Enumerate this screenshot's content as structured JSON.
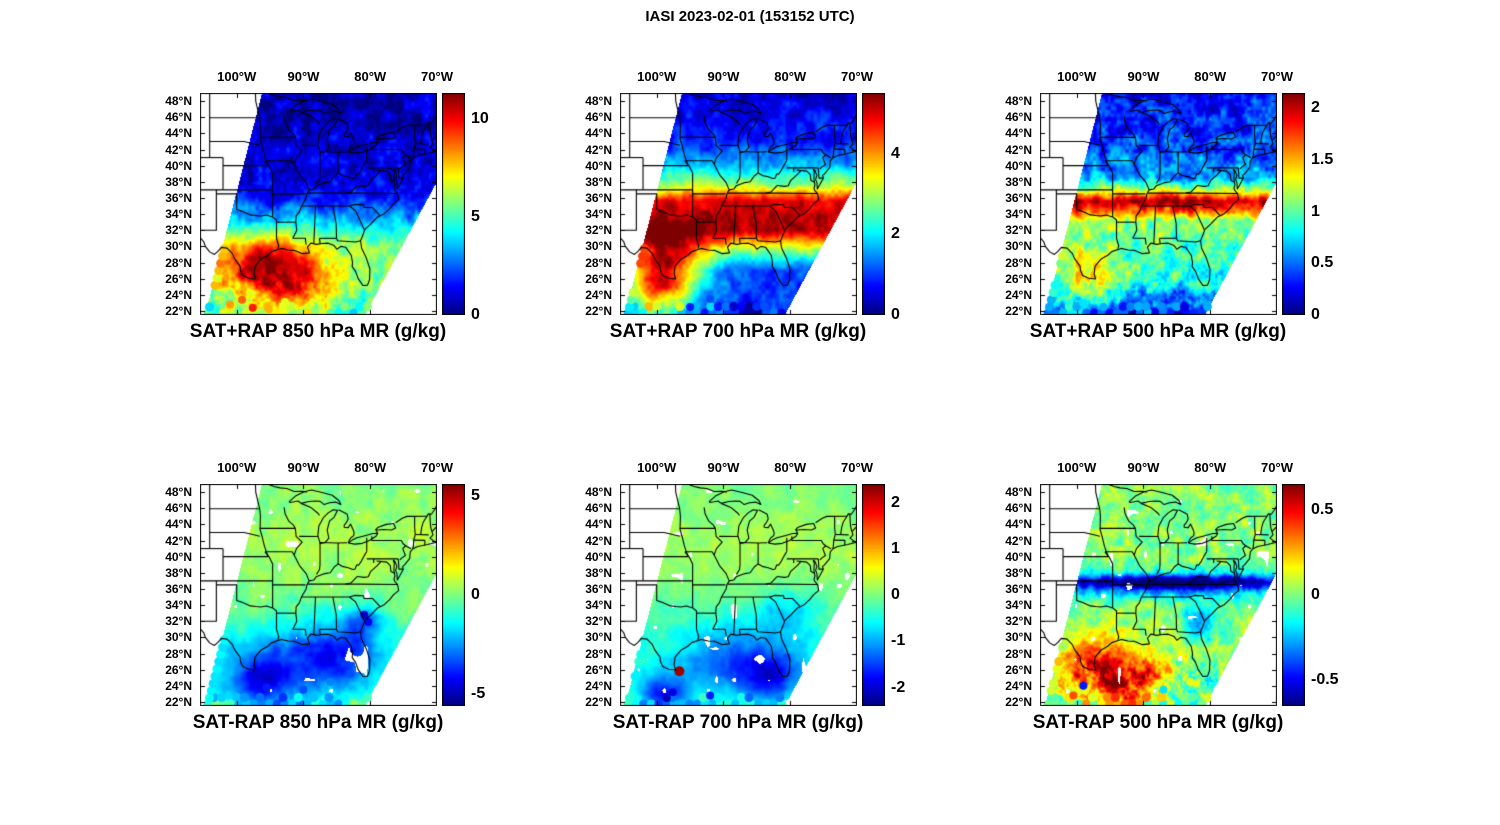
{
  "figure_title": "IASI 2023-02-01 (153152 UTC)",
  "colormap": "jet",
  "axes": {
    "lon_range": [
      -105.5,
      -70
    ],
    "lat_range": [
      21.5,
      49
    ],
    "grid": false,
    "lon_ticks": [
      {
        "label": "100°W",
        "lon": -100
      },
      {
        "label": "90°W",
        "lon": -90
      },
      {
        "label": "80°W",
        "lon": -80
      },
      {
        "label": "70°W",
        "lon": -70
      }
    ],
    "lat_ticks": [
      {
        "label": "48°N",
        "lat": 48
      },
      {
        "label": "46°N",
        "lat": 46
      },
      {
        "label": "44°N",
        "lat": 44
      },
      {
        "label": "42°N",
        "lat": 42
      },
      {
        "label": "40°N",
        "lat": 40
      },
      {
        "label": "38°N",
        "lat": 38
      },
      {
        "label": "36°N",
        "lat": 36
      },
      {
        "label": "34°N",
        "lat": 34
      },
      {
        "label": "32°N",
        "lat": 32
      },
      {
        "label": "30°N",
        "lat": 30
      },
      {
        "label": "28°N",
        "lat": 28
      },
      {
        "label": "26°N",
        "lat": 26
      },
      {
        "label": "24°N",
        "lat": 24
      },
      {
        "label": "22°N",
        "lat": 22
      }
    ]
  },
  "chart_data": [
    {
      "type": "heatmap",
      "title": "SAT+RAP 850 hPa MR (g/kg)",
      "units": "g/kg",
      "clim": [
        0,
        11.3
      ],
      "colorbar_ticks": [
        {
          "label": "10",
          "value": 10
        },
        {
          "label": "5",
          "value": 5
        },
        {
          "label": "0",
          "value": 0
        }
      ],
      "description": "IASI satellite swath of 850 hPa mixing ratio: 0-2 g/kg north of ~36N, 8-11 g/kg moist plume over Texas/Louisiana Gulf coast 24-31N, 4-7 g/kg over the Gulf of Mexico",
      "approx_field": {
        "lat_profile": [
          [
            49,
            0.06
          ],
          [
            40,
            0.08
          ],
          [
            36,
            0.14
          ],
          [
            33,
            0.3
          ],
          [
            30,
            0.5
          ],
          [
            27,
            0.5
          ],
          [
            21.5,
            0.42
          ]
        ],
        "blobs": [
          {
            "lon": -95.5,
            "slon": 5.5,
            "lat": 27.5,
            "slat": 2.8,
            "amp": 0.45
          },
          {
            "lon": -91,
            "slon": 4,
            "lat": 24.5,
            "slat": 2,
            "amp": 0.22
          }
        ],
        "noise_amp": 0.12,
        "noise_scale": 1.4,
        "south_noise_amp": 0.1,
        "seed": 11,
        "holes": false,
        "dots": [
          {
            "lon": -99.2,
            "lat": 23.4,
            "t": 0.78
          },
          {
            "lon": -97.6,
            "lat": 22.4,
            "t": 0.85
          },
          {
            "lon": -95.2,
            "lat": 22.2,
            "t": 0.7
          },
          {
            "lon": -92.8,
            "lat": 23.1,
            "t": 0.6
          },
          {
            "lon": -101,
            "lat": 22.8,
            "t": 0.72
          }
        ]
      }
    },
    {
      "type": "heatmap",
      "title": "SAT+RAP 700 hPa MR (g/kg)",
      "units": "g/kg",
      "clim": [
        0,
        5.5
      ],
      "colorbar_ticks": [
        {
          "label": "4",
          "value": 4
        },
        {
          "label": "2",
          "value": 2
        },
        {
          "label": "0",
          "value": 0
        }
      ],
      "description": "700 hPa mixing ratio: dry blue air north of ~42N, green 2-3 g/kg midlatitudes, deep red 5+ g/kg band across 31-36N extending to the lower-left, dry blue south of 29N",
      "approx_field": {
        "lat_profile": [
          [
            49,
            0.08
          ],
          [
            43,
            0.16
          ],
          [
            40,
            0.3
          ],
          [
            37.5,
            0.55
          ],
          [
            35.5,
            0.92
          ],
          [
            32,
            0.95
          ],
          [
            29.5,
            0.5
          ],
          [
            27,
            0.2
          ],
          [
            21.5,
            0.14
          ]
        ],
        "blobs": [
          {
            "lon": -100,
            "slon": 3.5,
            "lat": 25.5,
            "slat": 3,
            "amp": 0.55
          },
          {
            "lon": -97,
            "slon": 4,
            "lat": 28,
            "slat": 3,
            "amp": 0.3
          }
        ],
        "noise_amp": 0.1,
        "noise_scale": 1.4,
        "south_noise_amp": 0,
        "seed": 22,
        "holes": false,
        "dots": [
          {
            "lon": -95,
            "lat": 22.5,
            "t": 0.15
          },
          {
            "lon": -92,
            "lat": 23.5,
            "t": 0.2
          }
        ]
      }
    },
    {
      "type": "heatmap",
      "title": "SAT+RAP 500 hPa MR (g/kg)",
      "units": "g/kg",
      "clim": [
        0,
        2.15
      ],
      "colorbar_ticks": [
        {
          "label": "2",
          "value": 2
        },
        {
          "label": "1.5",
          "value": 1.5
        },
        {
          "label": "1",
          "value": 1
        },
        {
          "label": "0.5",
          "value": 0.5
        },
        {
          "label": "0",
          "value": 0
        }
      ],
      "description": "500 hPa mixing ratio: blue/cyan streaks north, dark red >2 g/kg band across ~34-37N, 0.7-1 g/kg cyan-green over the Gulf, dry blue at the far south",
      "approx_field": {
        "lat_profile": [
          [
            49,
            0.12
          ],
          [
            42,
            0.2
          ],
          [
            38.5,
            0.3
          ],
          [
            37,
            0.55
          ],
          [
            35.6,
            0.97
          ],
          [
            34.2,
            0.75
          ],
          [
            33,
            0.5
          ],
          [
            30,
            0.45
          ],
          [
            26,
            0.4
          ],
          [
            21.5,
            0.16
          ]
        ],
        "blobs": [
          {
            "lon": -98,
            "slon": 4,
            "lat": 26,
            "slat": 3,
            "amp": 0.22
          }
        ],
        "noise_amp": 0.16,
        "noise_scale": 1.2,
        "south_noise_amp": 0.12,
        "seed": 33,
        "holes": false,
        "dots": [
          {
            "lon": -99,
            "lat": 23,
            "t": 0.35
          },
          {
            "lon": -96,
            "lat": 22.5,
            "t": 0.3
          }
        ]
      }
    },
    {
      "type": "heatmap",
      "title": "SAT-RAP 850 hPa MR (g/kg)",
      "units": "g/kg",
      "clim": [
        -5.6,
        5.6
      ],
      "colorbar_ticks": [
        {
          "label": "5",
          "value": 5
        },
        {
          "label": "0",
          "value": 0
        },
        {
          "label": "-5",
          "value": -5
        }
      ],
      "description": "Retrieval minus RAP 850 hPa difference: near 0 (green) over most of the domain, negative (blue) -2 to -4 g/kg over the Gulf coast and Southeast, scattered blue dots off Georgia/Florida",
      "approx_field": {
        "lat_profile": [
          [
            49,
            0.5
          ],
          [
            45,
            0.52
          ],
          [
            41,
            0.54
          ],
          [
            37,
            0.51
          ],
          [
            33,
            0.47
          ],
          [
            29,
            0.4
          ],
          [
            25,
            0.4
          ],
          [
            21.5,
            0.44
          ]
        ],
        "blobs": [
          {
            "lon": -92,
            "slon": 6,
            "lat": 26.5,
            "slat": 3,
            "amp": -0.22
          },
          {
            "lon": -84,
            "slon": 3.5,
            "lat": 28.5,
            "slat": 2.5,
            "amp": -0.2
          },
          {
            "lon": -81,
            "slon": 2,
            "lat": 32.3,
            "slat": 1.5,
            "amp": -0.18
          },
          {
            "lon": -97,
            "slon": 3,
            "lat": 24,
            "slat": 2,
            "amp": -0.2
          }
        ],
        "noise_amp": 0.06,
        "noise_scale": 1.6,
        "south_noise_amp": 0,
        "seed": 44,
        "holes": true,
        "dots": [
          {
            "lon": -80.9,
            "lat": 32.8,
            "t": 0.08
          },
          {
            "lon": -80.3,
            "lat": 31.9,
            "t": 0.12
          },
          {
            "lon": -83,
            "lat": 25.5,
            "t": 0.2
          },
          {
            "lon": -86,
            "lat": 24.5,
            "t": 0.25
          },
          {
            "lon": -90,
            "lat": 23.5,
            "t": 0.2
          },
          {
            "lon": -95.5,
            "lat": 23.8,
            "t": 0.15
          }
        ]
      }
    },
    {
      "type": "heatmap",
      "title": "SAT-RAP 700 hPa MR (g/kg)",
      "units": "g/kg",
      "clim": [
        -2.4,
        2.4
      ],
      "colorbar_ticks": [
        {
          "label": "2",
          "value": 2
        },
        {
          "label": "1",
          "value": 1
        },
        {
          "label": "0",
          "value": 0
        },
        {
          "label": "-1",
          "value": -1
        },
        {
          "label": "-2",
          "value": -2
        }
      ],
      "description": "Retrieval minus RAP 700 hPa difference: mostly near 0 (green), -1 to -2 g/kg blue over the Gulf and Southeast coast, isolated +2 g/kg red spot near south Texas, dark blue dots at far southwest",
      "approx_field": {
        "lat_profile": [
          [
            49,
            0.5
          ],
          [
            45,
            0.52
          ],
          [
            41,
            0.54
          ],
          [
            37.5,
            0.52
          ],
          [
            34,
            0.47
          ],
          [
            30,
            0.42
          ],
          [
            26,
            0.4
          ],
          [
            21.5,
            0.44
          ]
        ],
        "blobs": [
          {
            "lon": -88,
            "slon": 6,
            "lat": 27,
            "slat": 3,
            "amp": -0.2
          },
          {
            "lon": -80.5,
            "slon": 3,
            "lat": 33,
            "slat": 2,
            "amp": -0.12
          },
          {
            "lon": -99,
            "slon": 2.5,
            "lat": 23,
            "slat": 1.5,
            "amp": -0.28
          },
          {
            "lon": -83,
            "slon": 3,
            "lat": 25,
            "slat": 2,
            "amp": -0.22
          }
        ],
        "noise_amp": 0.05,
        "noise_scale": 1.6,
        "south_noise_amp": 0,
        "seed": 55,
        "holes": true,
        "dots": [
          {
            "lon": -96.6,
            "lat": 25.8,
            "t": 0.97,
            "r": 5
          },
          {
            "lon": -98.5,
            "lat": 22.5,
            "t": 0.06
          },
          {
            "lon": -97.6,
            "lat": 23.2,
            "t": 0.1
          },
          {
            "lon": -92,
            "lat": 22.8,
            "t": 0.15
          },
          {
            "lon": -80.5,
            "lat": 27.5,
            "t": 0.2
          }
        ]
      }
    },
    {
      "type": "heatmap",
      "title": "SAT-RAP 500 hPa MR (g/kg)",
      "units": "g/kg",
      "clim": [
        -0.65,
        0.65
      ],
      "colorbar_ticks": [
        {
          "label": "0.5",
          "value": 0.5
        },
        {
          "label": "0",
          "value": 0
        },
        {
          "label": "-0.5",
          "value": -0.5
        }
      ],
      "description": "Retrieval minus RAP 500 hPa difference: mottled green/cyan, dark blue -0.5 band near 36-38N, +0.3 to +0.6 orange/red patches over south Texas and the western Gulf, blue dots near the Southeast coast",
      "approx_field": {
        "lat_profile": [
          [
            49,
            0.5
          ],
          [
            40,
            0.52
          ],
          [
            38,
            0.45
          ],
          [
            36.8,
            0.18
          ],
          [
            35.8,
            0.35
          ],
          [
            34,
            0.5
          ],
          [
            31,
            0.52
          ],
          [
            27,
            0.5
          ],
          [
            21.5,
            0.45
          ]
        ],
        "blobs": [
          {
            "lon": -97,
            "slon": 3.5,
            "lat": 26.5,
            "slat": 2.5,
            "amp": 0.38
          },
          {
            "lon": -93,
            "slon": 3,
            "lat": 23.8,
            "slat": 2,
            "amp": 0.3
          },
          {
            "lon": -89,
            "slon": 2.5,
            "lat": 26,
            "slat": 2,
            "amp": 0.2
          },
          {
            "lon": -81.5,
            "slon": 2,
            "lat": 32,
            "slat": 1.5,
            "amp": -0.25
          },
          {
            "lon": -86,
            "slon": 10,
            "lat": 36.8,
            "slat": 0.8,
            "amp": -0.3
          }
        ],
        "noise_amp": 0.12,
        "noise_scale": 1.1,
        "south_noise_amp": 0.2,
        "seed": 66,
        "holes": true,
        "dots": [
          {
            "lon": -100.5,
            "lat": 22.8,
            "t": 0.8
          },
          {
            "lon": -99,
            "lat": 24,
            "t": 0.15
          },
          {
            "lon": -83,
            "lat": 24.5,
            "t": 0.6
          },
          {
            "lon": -87,
            "lat": 23.5,
            "t": 0.35
          }
        ]
      }
    }
  ]
}
